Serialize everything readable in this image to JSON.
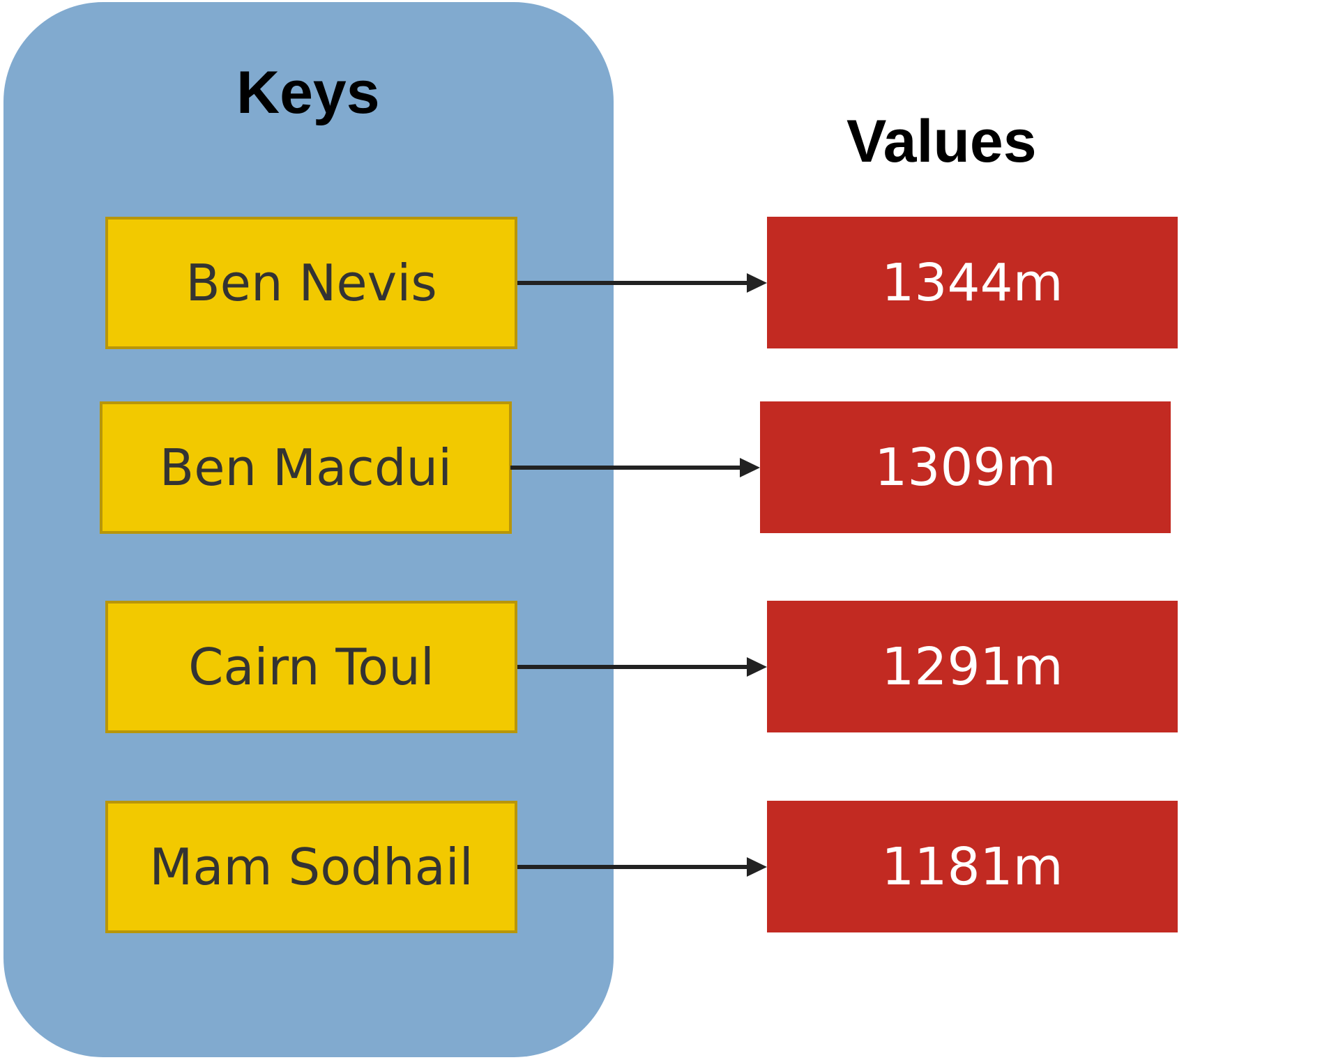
{
  "keys_heading": "Keys",
  "values_heading": "Values",
  "entries": [
    {
      "key": "Ben Nevis",
      "value": "1344m"
    },
    {
      "key": "Ben Macdui",
      "value": "1309m"
    },
    {
      "key": "Cairn Toul",
      "value": "1291m"
    },
    {
      "key": "Mam Sodhail",
      "value": "1181m"
    }
  ],
  "colors": {
    "keys_panel": "#81AACF",
    "key_box": "#F2C900",
    "key_border": "#B8960A",
    "value_box": "#C22A22",
    "arrow": "#222222"
  }
}
